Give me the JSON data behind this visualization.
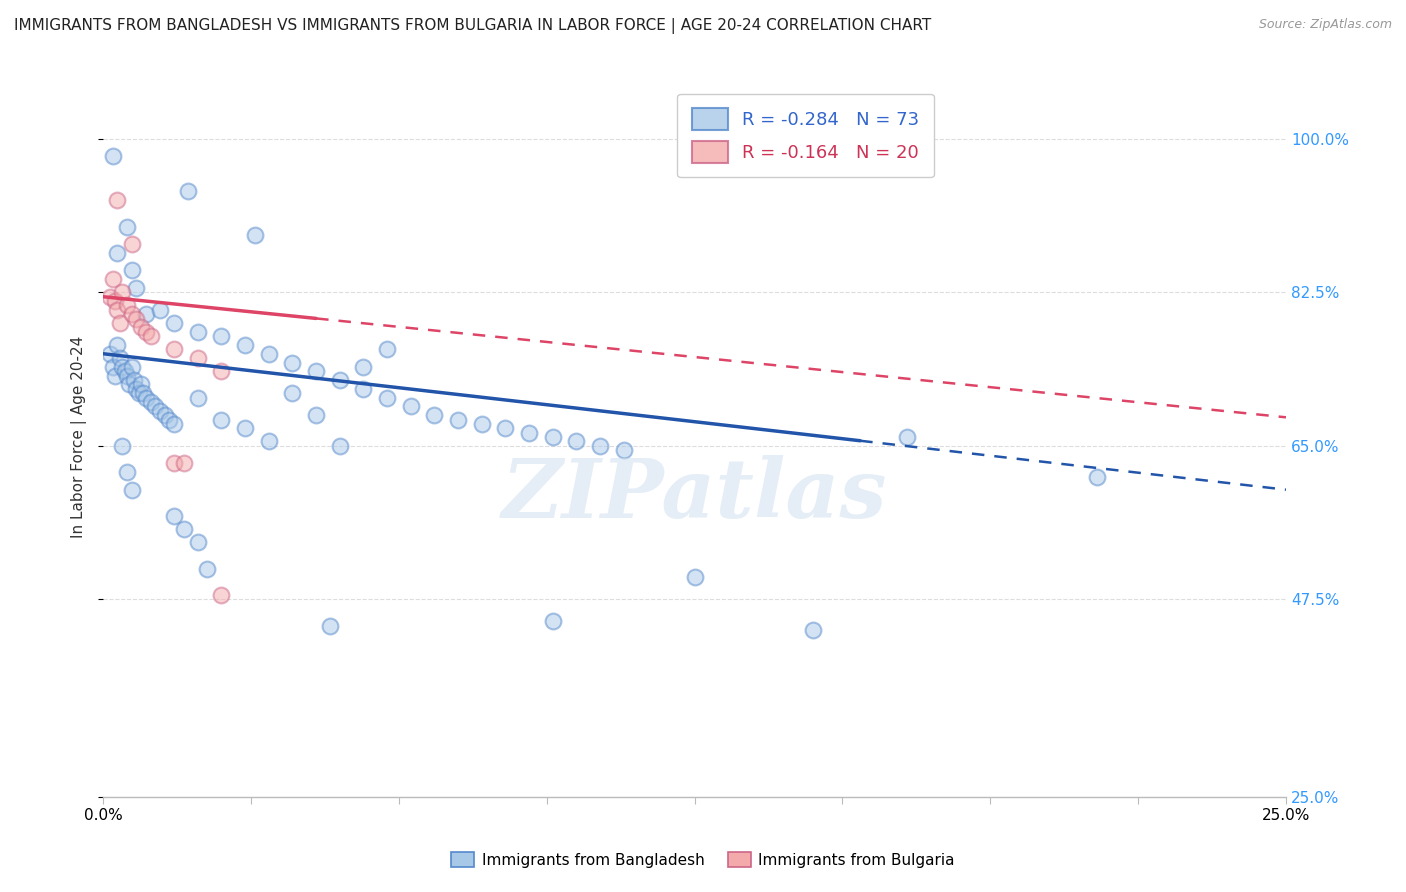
{
  "title": "IMMIGRANTS FROM BANGLADESH VS IMMIGRANTS FROM BULGARIA IN LABOR FORCE | AGE 20-24 CORRELATION CHART",
  "source": "Source: ZipAtlas.com",
  "ylabel": "In Labor Force | Age 20-24",
  "x_tick_labels": [
    "0.0%",
    "",
    "",
    "",
    "",
    "",
    "",
    "",
    "25.0%"
  ],
  "x_tick_values": [
    0.0,
    3.125,
    6.25,
    9.375,
    12.5,
    15.625,
    18.75,
    21.875,
    25.0
  ],
  "y_tick_labels": [
    "100.0%",
    "82.5%",
    "65.0%",
    "47.5%",
    "25.0%"
  ],
  "y_tick_values": [
    100.0,
    82.5,
    65.0,
    47.5,
    25.0
  ],
  "xlim": [
    0.0,
    25.0
  ],
  "ylim": [
    25.0,
    107.0
  ],
  "legend_entries": [
    {
      "label": "R = -0.284   N = 73",
      "color": "#A8C8E8"
    },
    {
      "label": "R = -0.164   N = 20",
      "color": "#F4AAAA"
    }
  ],
  "bg_color": "#FFFFFF",
  "grid_color": "#DDDDDD",
  "watermark": "ZIPatlas",
  "bangladesh_color": "#A8C8E8",
  "bulgaria_color": "#F4AAAA",
  "bangladesh_edge_color": "#5588CC",
  "bulgaria_edge_color": "#CC6688",
  "bangladesh_line_color": "#2255AA",
  "bulgaria_line_color": "#DD4466",
  "bangladesh_line_intercept": 75.5,
  "bangladesh_line_slope": -0.62,
  "bulgaria_line_intercept": 82.0,
  "bulgaria_line_slope": -0.55,
  "bangladesh_dashed_from": 16.0,
  "bulgaria_dashed_from": 4.5,
  "bangladesh_points": [
    [
      0.15,
      75.5
    ],
    [
      0.2,
      74.0
    ],
    [
      0.25,
      73.0
    ],
    [
      0.3,
      76.5
    ],
    [
      0.35,
      75.0
    ],
    [
      0.4,
      74.0
    ],
    [
      0.45,
      73.5
    ],
    [
      0.5,
      73.0
    ],
    [
      0.55,
      72.0
    ],
    [
      0.6,
      74.0
    ],
    [
      0.65,
      72.5
    ],
    [
      0.7,
      71.5
    ],
    [
      0.75,
      71.0
    ],
    [
      0.8,
      72.0
    ],
    [
      0.85,
      71.0
    ],
    [
      0.9,
      70.5
    ],
    [
      1.0,
      70.0
    ],
    [
      1.1,
      69.5
    ],
    [
      1.2,
      69.0
    ],
    [
      1.3,
      68.5
    ],
    [
      1.4,
      68.0
    ],
    [
      1.5,
      67.5
    ],
    [
      0.3,
      87.0
    ],
    [
      0.5,
      90.0
    ],
    [
      0.6,
      85.0
    ],
    [
      0.7,
      83.0
    ],
    [
      0.9,
      80.0
    ],
    [
      1.2,
      80.5
    ],
    [
      1.5,
      79.0
    ],
    [
      2.0,
      78.0
    ],
    [
      2.5,
      77.5
    ],
    [
      3.0,
      76.5
    ],
    [
      3.5,
      75.5
    ],
    [
      4.0,
      74.5
    ],
    [
      4.5,
      73.5
    ],
    [
      5.0,
      72.5
    ],
    [
      5.5,
      71.5
    ],
    [
      6.0,
      70.5
    ],
    [
      6.5,
      69.5
    ],
    [
      7.0,
      68.5
    ],
    [
      7.5,
      68.0
    ],
    [
      8.0,
      67.5
    ],
    [
      8.5,
      67.0
    ],
    [
      9.0,
      66.5
    ],
    [
      9.5,
      66.0
    ],
    [
      10.0,
      65.5
    ],
    [
      10.5,
      65.0
    ],
    [
      11.0,
      64.5
    ],
    [
      2.0,
      70.5
    ],
    [
      2.5,
      68.0
    ],
    [
      3.0,
      67.0
    ],
    [
      3.5,
      65.5
    ],
    [
      4.0,
      71.0
    ],
    [
      4.5,
      68.5
    ],
    [
      5.0,
      65.0
    ],
    [
      5.5,
      74.0
    ],
    [
      6.0,
      76.0
    ],
    [
      1.5,
      57.0
    ],
    [
      1.7,
      55.5
    ],
    [
      2.2,
      51.0
    ],
    [
      4.8,
      44.5
    ],
    [
      12.5,
      50.0
    ],
    [
      17.0,
      66.0
    ],
    [
      21.0,
      61.5
    ],
    [
      15.0,
      44.0
    ],
    [
      0.4,
      65.0
    ],
    [
      0.5,
      62.0
    ],
    [
      0.6,
      60.0
    ],
    [
      2.0,
      54.0
    ],
    [
      9.5,
      45.0
    ],
    [
      0.2,
      98.0
    ],
    [
      1.8,
      94.0
    ],
    [
      3.2,
      89.0
    ]
  ],
  "bulgaria_points": [
    [
      0.15,
      82.0
    ],
    [
      0.2,
      84.0
    ],
    [
      0.25,
      81.5
    ],
    [
      0.3,
      80.5
    ],
    [
      0.35,
      79.0
    ],
    [
      0.4,
      82.5
    ],
    [
      0.5,
      81.0
    ],
    [
      0.6,
      80.0
    ],
    [
      0.7,
      79.5
    ],
    [
      0.8,
      78.5
    ],
    [
      0.9,
      78.0
    ],
    [
      1.0,
      77.5
    ],
    [
      1.5,
      76.0
    ],
    [
      2.0,
      75.0
    ],
    [
      2.5,
      73.5
    ],
    [
      0.3,
      93.0
    ],
    [
      0.6,
      88.0
    ],
    [
      1.5,
      63.0
    ],
    [
      1.7,
      63.0
    ],
    [
      2.5,
      48.0
    ]
  ],
  "title_fontsize": 11,
  "axis_label_fontsize": 11,
  "tick_fontsize": 11,
  "legend_fontsize": 13,
  "dot_size": 130,
  "dot_alpha": 0.5,
  "dot_linewidth": 1.5
}
